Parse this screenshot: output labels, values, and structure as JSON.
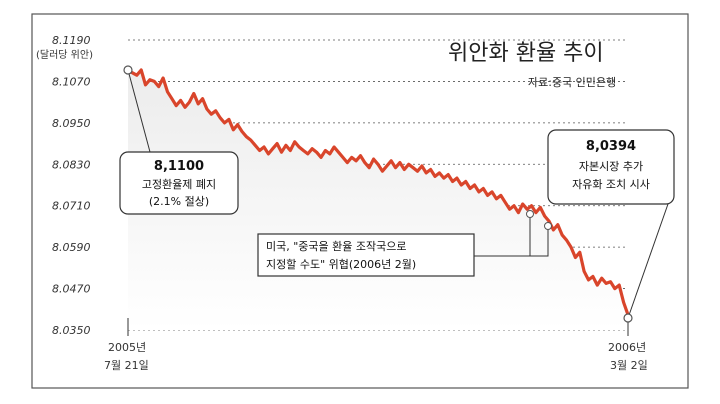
{
  "chart_data": {
    "type": "line",
    "title": "위안화 환율 추이",
    "source": "자료:중국 인민은행",
    "ylabel": "(달러당 위안)",
    "ylim": [
      8.035,
      8.119
    ],
    "yticks": [
      "8.1190",
      "8.1070",
      "8.0950",
      "8.0830",
      "8.0710",
      "8.0590",
      "8.0470",
      "8.0350"
    ],
    "x_labels": {
      "start_year": "2005년",
      "start_date": "7월 21일",
      "end_year": "2006년",
      "end_date": "3월 2일"
    },
    "color": "#d9452b",
    "series": [
      {
        "values": [
          8.11,
          8.1095,
          8.1088,
          8.1103,
          8.106,
          8.1075,
          8.107,
          8.1055,
          8.108,
          8.104,
          8.102,
          8.1,
          8.1015,
          8.0995,
          8.101,
          8.1035,
          8.1005,
          8.102,
          8.099,
          8.0975,
          8.0985,
          8.0965,
          8.095,
          8.096,
          8.093,
          8.0945,
          8.0925,
          8.091,
          8.09,
          8.0885,
          8.087,
          8.088,
          8.086,
          8.0875,
          8.089,
          8.0865,
          8.0885,
          8.087,
          8.0895,
          8.088,
          8.087,
          8.086,
          8.0875,
          8.0865,
          8.085,
          8.087,
          8.086,
          8.088,
          8.0865,
          8.085,
          8.0835,
          8.085,
          8.084,
          8.0855,
          8.0835,
          8.082,
          8.0845,
          8.083,
          8.081,
          8.0825,
          8.084,
          8.082,
          8.0835,
          8.0815,
          8.083,
          8.082,
          8.081,
          8.0825,
          8.0805,
          8.0815,
          8.0795,
          8.0805,
          8.079,
          8.08,
          8.078,
          8.079,
          8.077,
          8.078,
          8.076,
          8.077,
          8.075,
          8.076,
          8.074,
          8.075,
          8.073,
          8.074,
          8.072,
          8.07,
          8.071,
          8.069,
          8.0715,
          8.07,
          8.071,
          8.069,
          8.0705,
          8.068,
          8.0665,
          8.064,
          8.0655,
          8.0625,
          8.061,
          8.059,
          8.056,
          8.0575,
          8.052,
          8.0495,
          8.0505,
          8.048,
          8.05,
          8.0485,
          8.049,
          8.047,
          8.048,
          8.043,
          8.0394
        ]
      }
    ],
    "annotations": [
      {
        "value": "8,1100",
        "lines": [
          "고정환율제 폐지",
          "(2.1% 절상)"
        ]
      },
      {
        "value": "8,0394",
        "lines": [
          "자본시장 추가",
          "자유화 조치 시사"
        ]
      },
      {
        "value": "",
        "lines": [
          "미국, \"중국을 환율 조작국으로",
          "지정할 수도\" 위협(2006년 2월)"
        ]
      }
    ],
    "grid": true
  }
}
